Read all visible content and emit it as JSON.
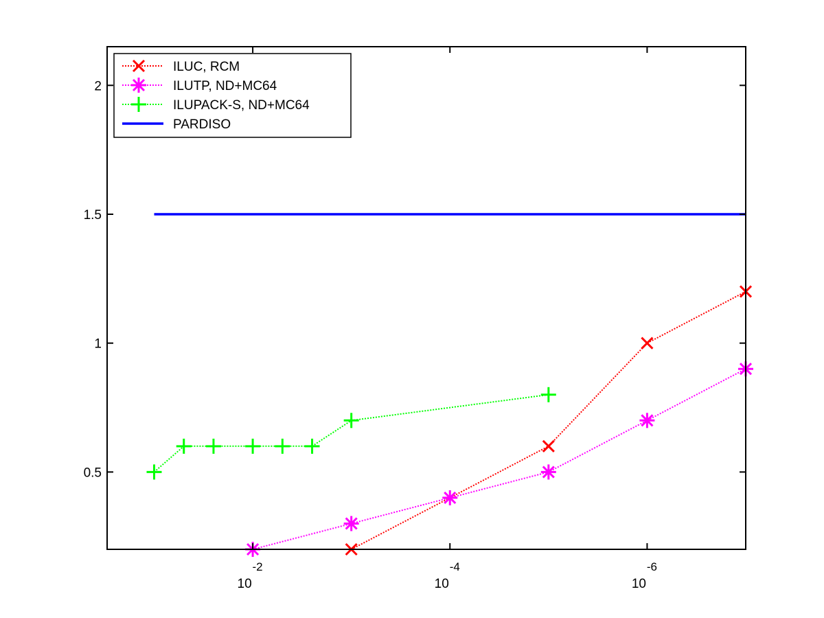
{
  "chart_data": {
    "type": "line",
    "title": "",
    "xlabel": "",
    "ylabel": "",
    "xscale": "log",
    "xlim": [
      0.3,
      1e-07
    ],
    "ylim": [
      0.2,
      2.15
    ],
    "x_ticks": [
      {
        "value": 0.01,
        "base": "10",
        "exponent": "-2"
      },
      {
        "value": 0.0001,
        "base": "10",
        "exponent": "-4"
      },
      {
        "value": 1e-06,
        "base": "10",
        "exponent": "-6"
      }
    ],
    "y_ticks": [
      {
        "value": 0.5,
        "label": "0.5"
      },
      {
        "value": 1,
        "label": "1"
      },
      {
        "value": 1.5,
        "label": "1.5"
      },
      {
        "value": 2,
        "label": "2"
      }
    ],
    "grid": false,
    "legend_position": "top-left",
    "series": [
      {
        "name": "ILUC, RCM",
        "color": "#ff0000",
        "marker": "x",
        "line": "dotted",
        "points": [
          [
            0.001,
            0.2
          ],
          [
            1e-05,
            0.6
          ],
          [
            1e-06,
            1.0
          ],
          [
            1e-07,
            1.2
          ]
        ]
      },
      {
        "name": "ILUTP,  ND+MC64",
        "color": "#ff00ff",
        "marker": "asterisk",
        "line": "dotted",
        "points": [
          [
            0.01,
            0.2
          ],
          [
            0.001,
            0.3
          ],
          [
            0.0001,
            0.4
          ],
          [
            1e-05,
            0.5
          ],
          [
            1e-06,
            0.7
          ],
          [
            1e-07,
            0.9
          ]
        ]
      },
      {
        "name": "ILUPACK-S, ND+MC64",
        "color": "#00ff00",
        "marker": "plus",
        "line": "dotted",
        "points": [
          [
            0.1,
            0.5
          ],
          [
            0.05,
            0.6
          ],
          [
            0.025,
            0.6
          ],
          [
            0.01,
            0.6
          ],
          [
            0.005,
            0.6
          ],
          [
            0.0025,
            0.6
          ],
          [
            0.001,
            0.7
          ],
          [
            1e-05,
            0.8
          ]
        ]
      },
      {
        "name": "PARDISO",
        "color": "#0000ff",
        "marker": "none",
        "line": "solid",
        "points": [
          [
            0.1,
            1.5
          ],
          [
            1e-07,
            1.5
          ]
        ]
      }
    ]
  }
}
